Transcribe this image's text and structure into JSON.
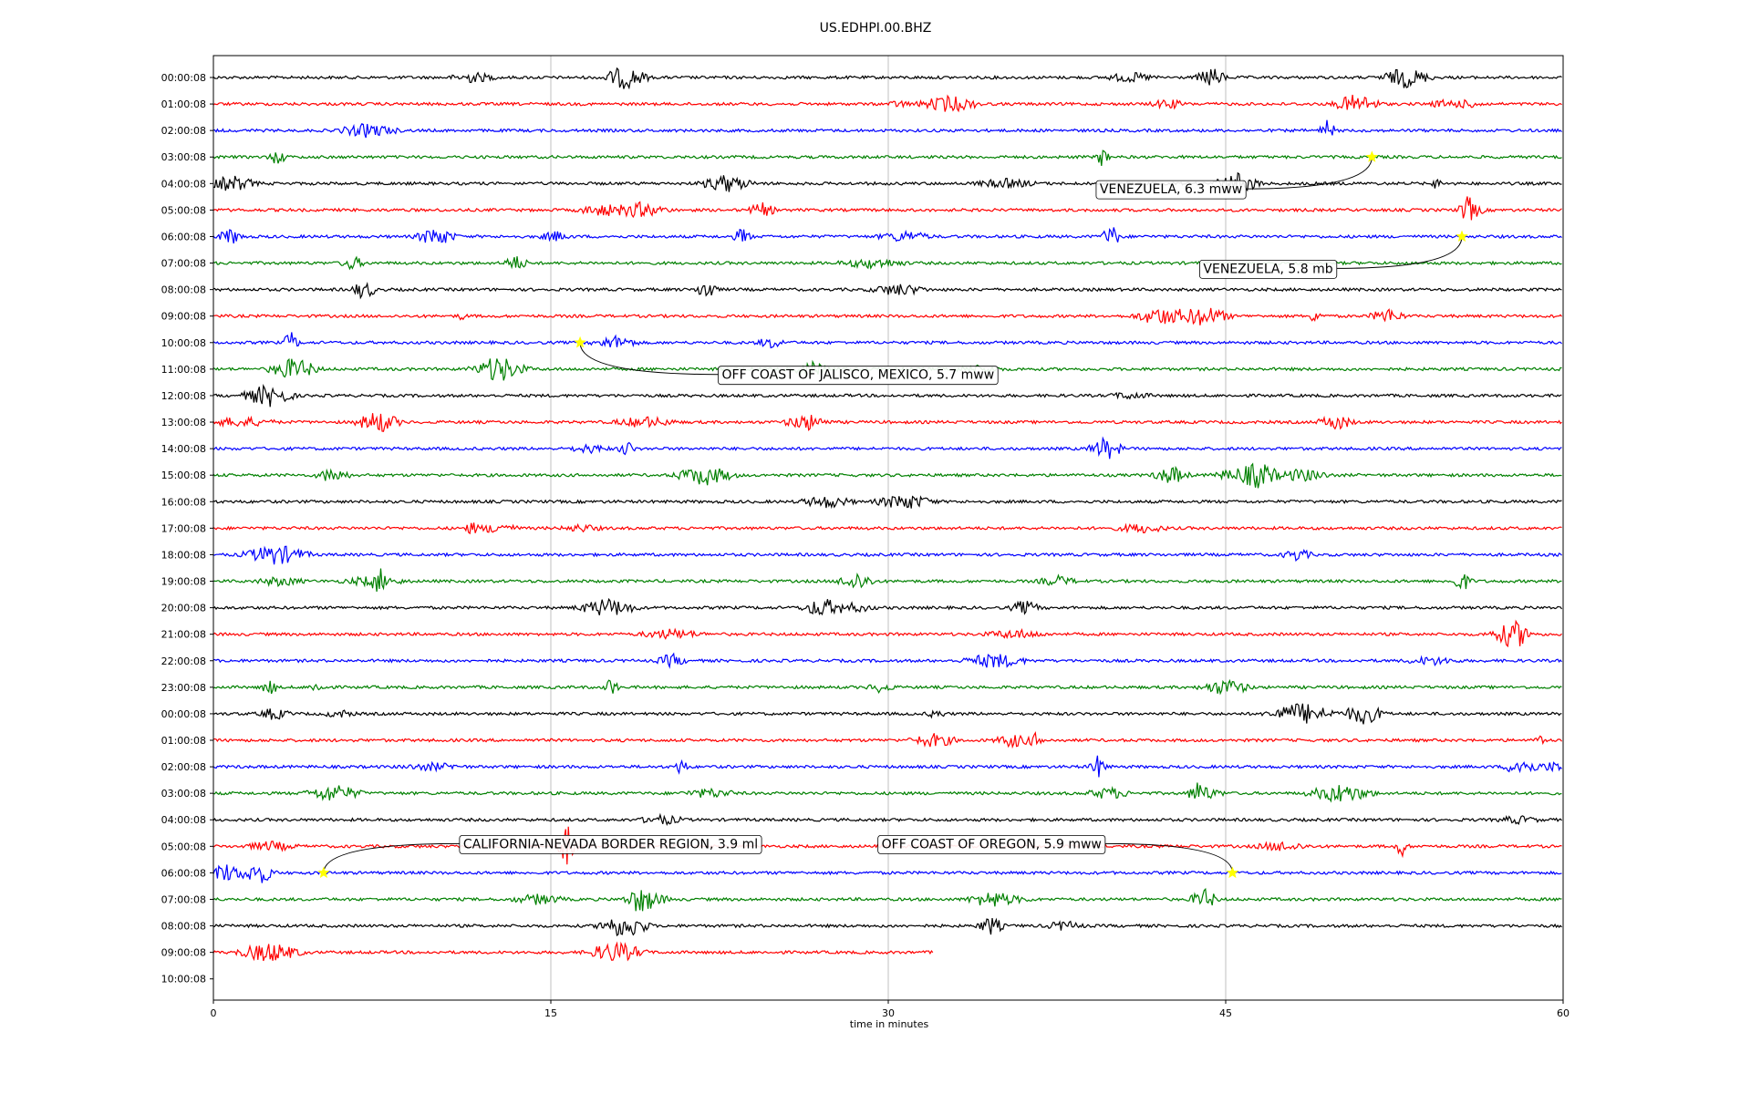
{
  "chart_data": {
    "type": "line",
    "title": "US.EDHPI.00.BHZ",
    "xlabel": "time in minutes",
    "ylabel": "",
    "xlim": [
      0,
      60
    ],
    "x_ticks": [
      "0",
      "15",
      "30",
      "45",
      "60"
    ],
    "x_tick_values": [
      0,
      15,
      30,
      45,
      60
    ],
    "vertical_grid_at": [
      15,
      30,
      45
    ],
    "trace_minutes_last_row": 32,
    "colors": [
      "#000000",
      "#ff0000",
      "#0000ff",
      "#008000"
    ],
    "marker_color": "#ffff00",
    "rows": [
      {
        "label": "00:00:08"
      },
      {
        "label": "01:00:08"
      },
      {
        "label": "02:00:08"
      },
      {
        "label": "03:00:08"
      },
      {
        "label": "04:00:08"
      },
      {
        "label": "05:00:08"
      },
      {
        "label": "06:00:08"
      },
      {
        "label": "07:00:08"
      },
      {
        "label": "08:00:08"
      },
      {
        "label": "09:00:08"
      },
      {
        "label": "10:00:08"
      },
      {
        "label": "11:00:08"
      },
      {
        "label": "12:00:08"
      },
      {
        "label": "13:00:08"
      },
      {
        "label": "14:00:08"
      },
      {
        "label": "15:00:08"
      },
      {
        "label": "16:00:08"
      },
      {
        "label": "17:00:08"
      },
      {
        "label": "18:00:08"
      },
      {
        "label": "19:00:08"
      },
      {
        "label": "20:00:08"
      },
      {
        "label": "21:00:08"
      },
      {
        "label": "22:00:08"
      },
      {
        "label": "23:00:08"
      },
      {
        "label": "00:00:08"
      },
      {
        "label": "01:00:08"
      },
      {
        "label": "02:00:08"
      },
      {
        "label": "03:00:08"
      },
      {
        "label": "04:00:08"
      },
      {
        "label": "05:00:08"
      },
      {
        "label": "06:00:08"
      },
      {
        "label": "07:00:08"
      },
      {
        "label": "08:00:08"
      },
      {
        "label": "09:00:08"
      },
      {
        "label": "10:00:08"
      }
    ],
    "events": [
      {
        "label": "VENEZUELA, 6.3 mww",
        "row": 3,
        "minute": 51.5,
        "label_row": 4.2,
        "label_minute": 39.2
      },
      {
        "label": "VENEZUELA, 5.8 mb",
        "row": 6,
        "minute": 55.5,
        "label_row": 7.2,
        "label_minute": 43.8
      },
      {
        "label": "OFF COAST OF JALISCO, MEXICO, 5.7 mww",
        "row": 10,
        "minute": 16.3,
        "label_row": 11.2,
        "label_minute": 22.4
      },
      {
        "label": "CALIFORNIA-NEVADA BORDER REGION, 3.9 ml",
        "row": 30,
        "minute": 4.9,
        "label_row": 28.9,
        "label_minute": 10.9
      },
      {
        "label": "OFF COAST OF OREGON, 5.9 mww",
        "row": 30,
        "minute": 45.3,
        "label_row": 28.9,
        "label_minute": 29.5
      }
    ]
  }
}
